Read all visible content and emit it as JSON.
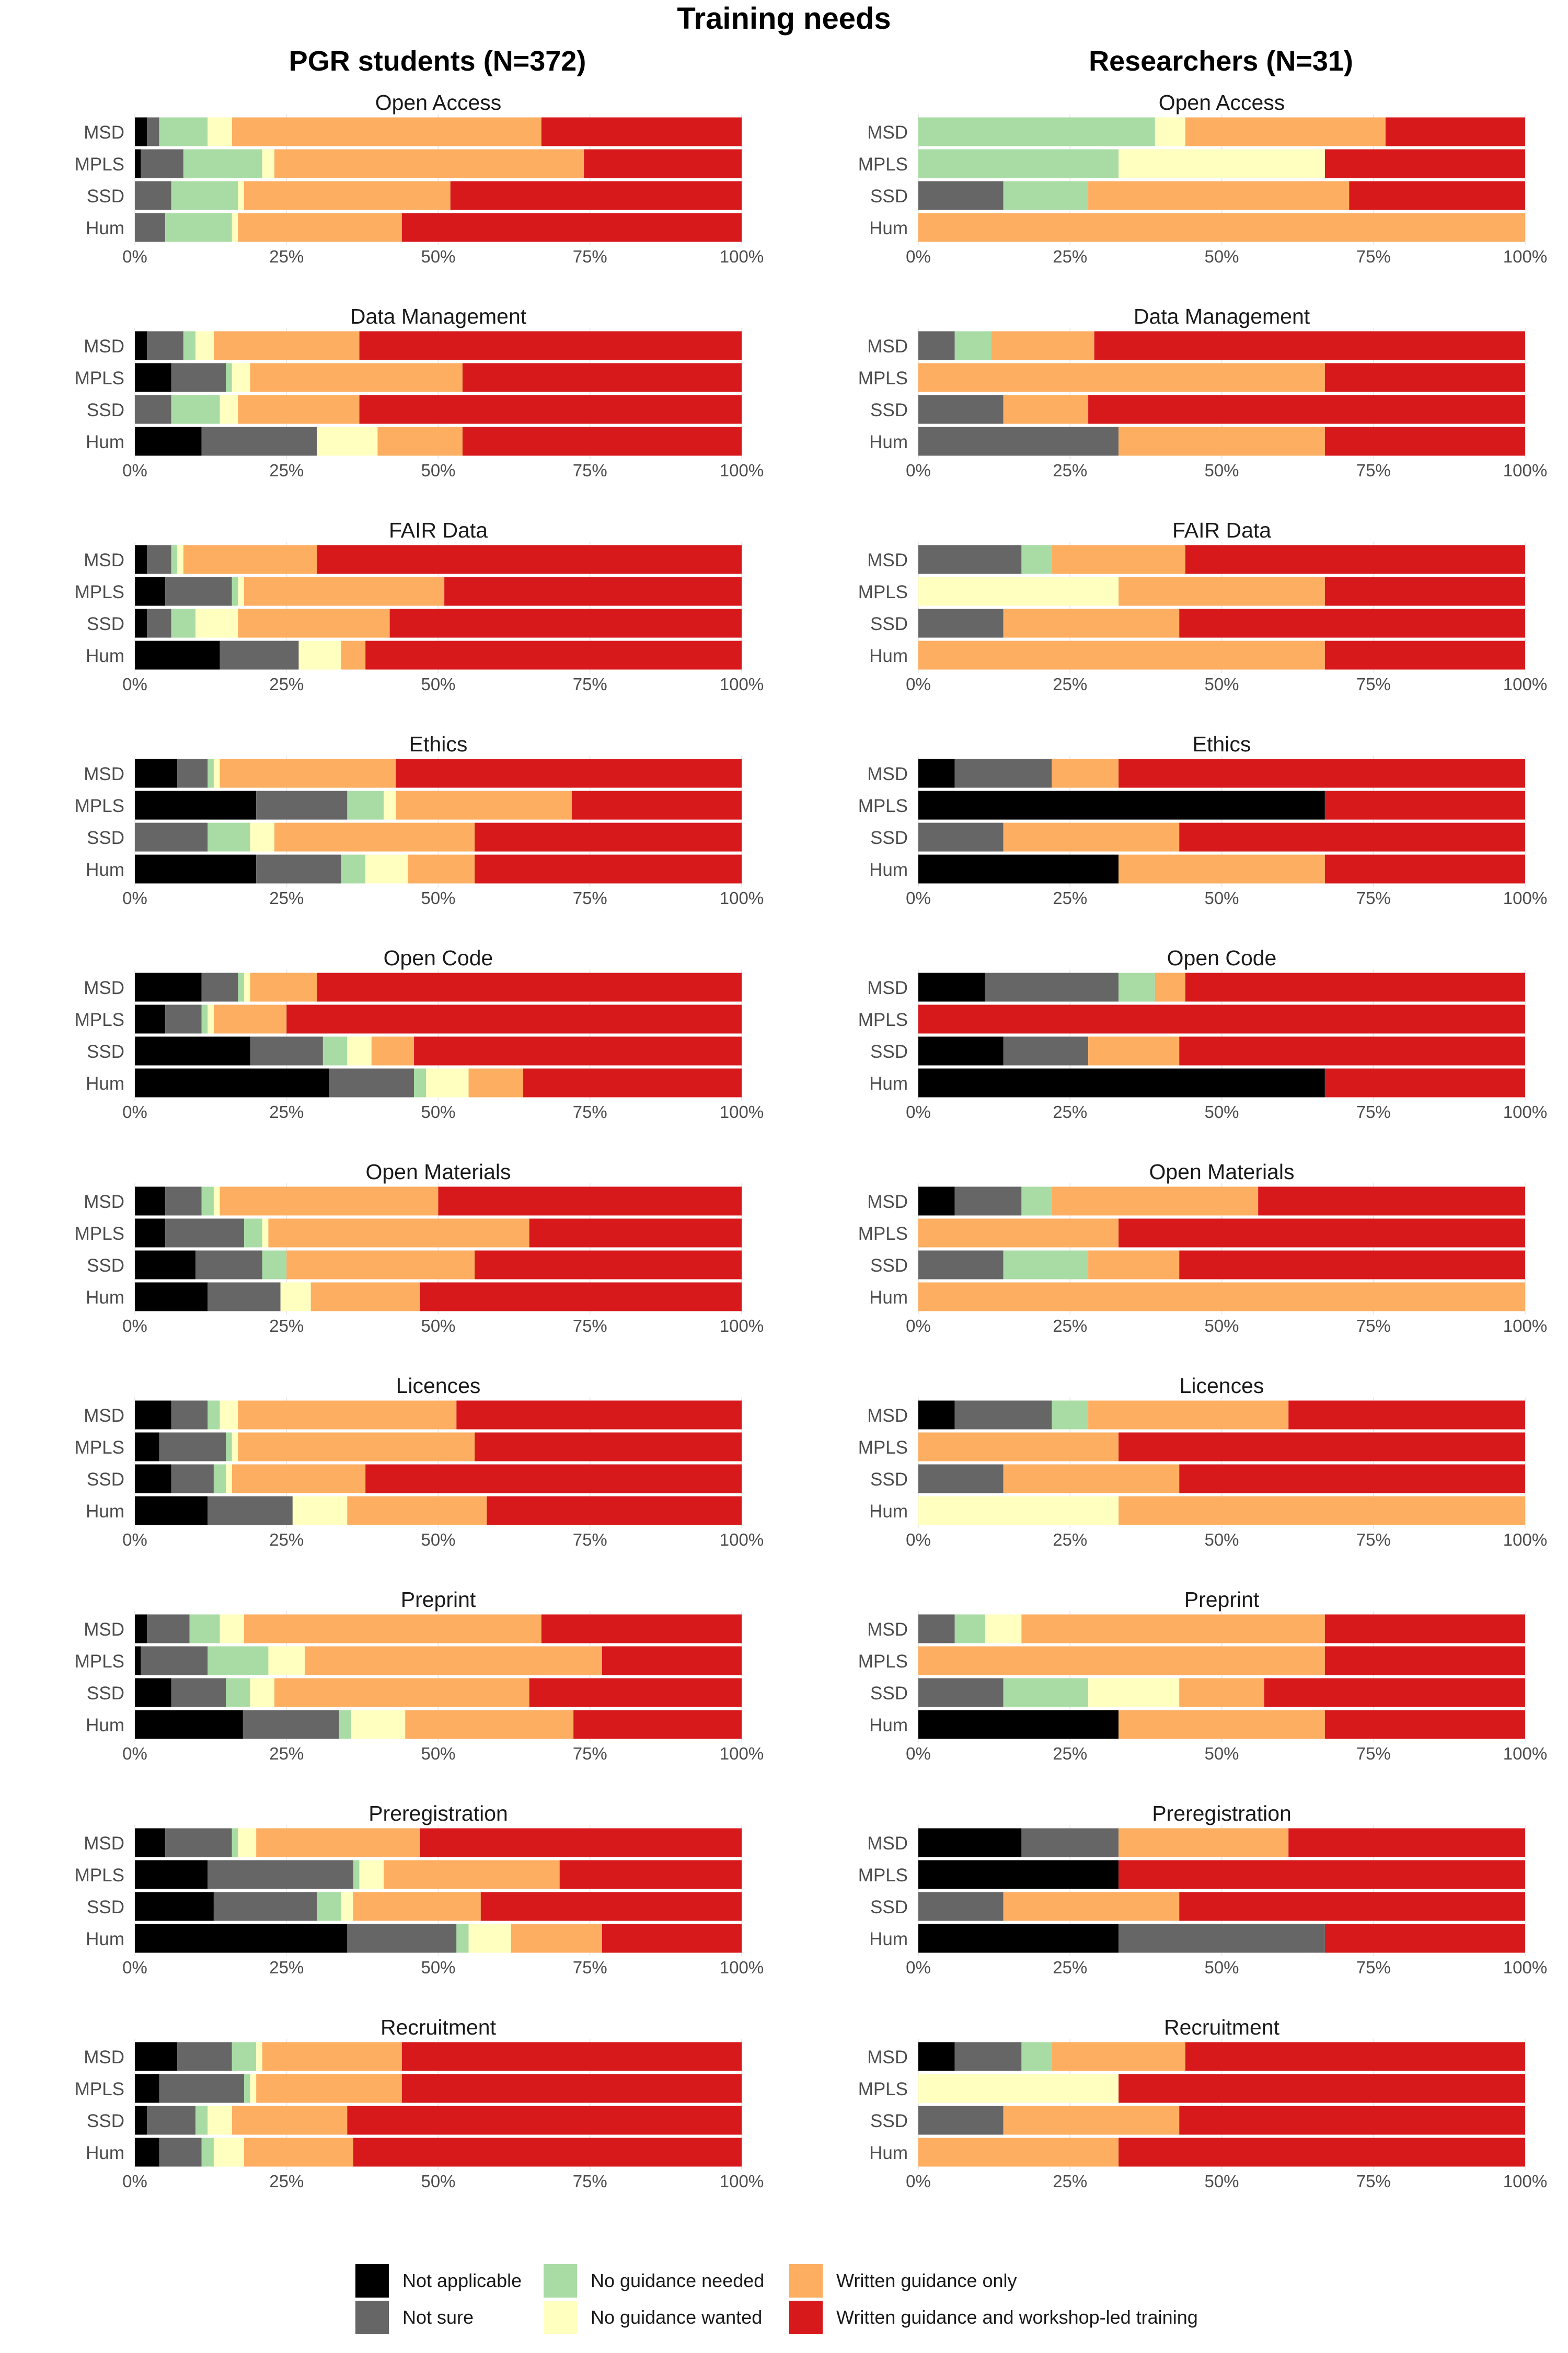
{
  "title": "Training needs",
  "columns": [
    "PGR students (N=372)",
    "Researchers (N=31)"
  ],
  "legend": [
    {
      "label": "Not applicable",
      "color": "#000000"
    },
    {
      "label": "Not sure",
      "color": "#666666"
    },
    {
      "label": "No guidance needed",
      "color": "#a8dca4"
    },
    {
      "label": "No guidance wanted",
      "color": "#ffffc0"
    },
    {
      "label": "Written guidance only",
      "color": "#fdae61"
    },
    {
      "label": "Written guidance and workshop-led training",
      "color": "#d7191c"
    }
  ],
  "chart_data": {
    "type": "bar",
    "orientation": "horizontal",
    "stacked": true,
    "title": "Training needs",
    "categories": [
      "MSD",
      "MPLS",
      "SSD",
      "Hum"
    ],
    "series_names": [
      "Not applicable",
      "Not sure",
      "No guidance needed",
      "No guidance wanted",
      "Written guidance only",
      "Written guidance and workshop-led training"
    ],
    "xticks": [
      "0%",
      "25%",
      "50%",
      "75%",
      "100%"
    ],
    "xlim": [
      0,
      100
    ],
    "panels": [
      {
        "group": "PGR students (N=372)",
        "title": "Open Access",
        "values": [
          [
            2,
            2,
            8,
            4,
            51,
            33
          ],
          [
            1,
            7,
            13,
            2,
            51,
            26
          ],
          [
            0,
            6,
            11,
            1,
            34,
            48
          ],
          [
            0,
            5,
            11,
            1,
            27,
            56
          ]
        ]
      },
      {
        "group": "Researchers (N=31)",
        "title": "Open Access",
        "values": [
          [
            0,
            0,
            39,
            5,
            33,
            23
          ],
          [
            0,
            0,
            33,
            34,
            0,
            33
          ],
          [
            0,
            14,
            14,
            0,
            43,
            29
          ],
          [
            0,
            0,
            0,
            0,
            100,
            0
          ]
        ]
      },
      {
        "group": "PGR students (N=372)",
        "title": "Data Management",
        "values": [
          [
            2,
            6,
            2,
            3,
            24,
            63
          ],
          [
            6,
            9,
            1,
            3,
            35,
            46
          ],
          [
            0,
            6,
            8,
            3,
            20,
            63
          ],
          [
            11,
            19,
            0,
            10,
            14,
            46
          ]
        ]
      },
      {
        "group": "Researchers (N=31)",
        "title": "Data Management",
        "values": [
          [
            0,
            6,
            6,
            0,
            17,
            71
          ],
          [
            0,
            0,
            0,
            0,
            67,
            33
          ],
          [
            0,
            14,
            0,
            0,
            14,
            72
          ],
          [
            0,
            33,
            0,
            0,
            34,
            33
          ]
        ]
      },
      {
        "group": "PGR students (N=372)",
        "title": "FAIR Data",
        "values": [
          [
            2,
            4,
            1,
            1,
            22,
            70
          ],
          [
            5,
            11,
            1,
            1,
            33,
            49
          ],
          [
            2,
            4,
            4,
            7,
            25,
            58
          ],
          [
            14,
            13,
            0,
            7,
            4,
            62
          ]
        ]
      },
      {
        "group": "Researchers (N=31)",
        "title": "FAIR Data",
        "values": [
          [
            0,
            17,
            5,
            0,
            22,
            56
          ],
          [
            0,
            0,
            0,
            33,
            34,
            33
          ],
          [
            0,
            14,
            0,
            0,
            29,
            57
          ],
          [
            0,
            0,
            0,
            0,
            67,
            33
          ]
        ]
      },
      {
        "group": "PGR students (N=372)",
        "title": "Ethics",
        "values": [
          [
            7,
            5,
            1,
            1,
            29,
            57
          ],
          [
            20,
            15,
            6,
            2,
            29,
            28
          ],
          [
            0,
            12,
            7,
            4,
            33,
            44
          ],
          [
            20,
            14,
            4,
            7,
            11,
            44
          ]
        ]
      },
      {
        "group": "Researchers (N=31)",
        "title": "Ethics",
        "values": [
          [
            6,
            16,
            0,
            0,
            11,
            67
          ],
          [
            67,
            0,
            0,
            0,
            0,
            33
          ],
          [
            0,
            14,
            0,
            0,
            29,
            57
          ],
          [
            33,
            0,
            0,
            0,
            34,
            33
          ]
        ]
      },
      {
        "group": "PGR students (N=372)",
        "title": "Open Code",
        "values": [
          [
            11,
            6,
            1,
            1,
            11,
            70
          ],
          [
            5,
            6,
            1,
            1,
            12,
            75
          ],
          [
            19,
            12,
            4,
            4,
            7,
            54
          ],
          [
            32,
            14,
            2,
            7,
            9,
            36
          ]
        ]
      },
      {
        "group": "Researchers (N=31)",
        "title": "Open Code",
        "values": [
          [
            11,
            22,
            6,
            0,
            5,
            56
          ],
          [
            0,
            0,
            0,
            0,
            0,
            100
          ],
          [
            14,
            14,
            0,
            0,
            15,
            57
          ],
          [
            67,
            0,
            0,
            0,
            0,
            33
          ]
        ]
      },
      {
        "group": "PGR students (N=372)",
        "title": "Open Materials",
        "values": [
          [
            5,
            6,
            2,
            1,
            36,
            50
          ],
          [
            5,
            13,
            3,
            1,
            43,
            35
          ],
          [
            10,
            11,
            4,
            0,
            31,
            44
          ],
          [
            12,
            12,
            0,
            5,
            18,
            53
          ]
        ]
      },
      {
        "group": "Researchers (N=31)",
        "title": "Open Materials",
        "values": [
          [
            6,
            11,
            5,
            0,
            34,
            44
          ],
          [
            0,
            0,
            0,
            0,
            33,
            67
          ],
          [
            0,
            14,
            14,
            0,
            15,
            57
          ],
          [
            0,
            0,
            0,
            0,
            100,
            0
          ]
        ]
      },
      {
        "group": "PGR students (N=372)",
        "title": "Licences",
        "values": [
          [
            6,
            6,
            2,
            3,
            36,
            47
          ],
          [
            4,
            11,
            1,
            1,
            39,
            44
          ],
          [
            6,
            7,
            2,
            1,
            22,
            62
          ],
          [
            12,
            14,
            0,
            9,
            23,
            42
          ]
        ]
      },
      {
        "group": "Researchers (N=31)",
        "title": "Licences",
        "values": [
          [
            6,
            16,
            6,
            0,
            33,
            39
          ],
          [
            0,
            0,
            0,
            0,
            33,
            67
          ],
          [
            0,
            14,
            0,
            0,
            29,
            57
          ],
          [
            0,
            0,
            0,
            33,
            67,
            0
          ]
        ]
      },
      {
        "group": "PGR students (N=372)",
        "title": "Preprint",
        "values": [
          [
            2,
            7,
            5,
            4,
            49,
            33
          ],
          [
            1,
            11,
            10,
            6,
            49,
            23
          ],
          [
            6,
            9,
            4,
            4,
            42,
            35
          ],
          [
            18,
            16,
            2,
            9,
            28,
            28
          ]
        ]
      },
      {
        "group": "Researchers (N=31)",
        "title": "Preprint",
        "values": [
          [
            0,
            6,
            5,
            6,
            50,
            33
          ],
          [
            0,
            0,
            0,
            0,
            67,
            33
          ],
          [
            0,
            14,
            14,
            15,
            14,
            43
          ],
          [
            33,
            0,
            0,
            0,
            34,
            33
          ]
        ]
      },
      {
        "group": "PGR students (N=372)",
        "title": "Preregistration",
        "values": [
          [
            5,
            11,
            1,
            3,
            27,
            53
          ],
          [
            12,
            24,
            1,
            4,
            29,
            30
          ],
          [
            13,
            17,
            4,
            2,
            21,
            43
          ],
          [
            35,
            18,
            2,
            7,
            15,
            23
          ]
        ]
      },
      {
        "group": "Researchers (N=31)",
        "title": "Preregistration",
        "values": [
          [
            17,
            16,
            0,
            0,
            28,
            39
          ],
          [
            33,
            0,
            0,
            0,
            0,
            67
          ],
          [
            0,
            14,
            0,
            0,
            29,
            57
          ],
          [
            33,
            34,
            0,
            0,
            0,
            33
          ]
        ]
      },
      {
        "group": "PGR students (N=372)",
        "title": "Recruitment",
        "values": [
          [
            7,
            9,
            4,
            1,
            23,
            56
          ],
          [
            4,
            14,
            1,
            1,
            24,
            56
          ],
          [
            2,
            8,
            2,
            4,
            19,
            65
          ],
          [
            4,
            7,
            2,
            5,
            18,
            64
          ]
        ]
      },
      {
        "group": "Researchers (N=31)",
        "title": "Recruitment",
        "values": [
          [
            6,
            11,
            5,
            0,
            22,
            56
          ],
          [
            0,
            0,
            0,
            33,
            0,
            67
          ],
          [
            0,
            14,
            0,
            0,
            29,
            57
          ],
          [
            0,
            0,
            0,
            0,
            33,
            67
          ]
        ]
      }
    ]
  }
}
